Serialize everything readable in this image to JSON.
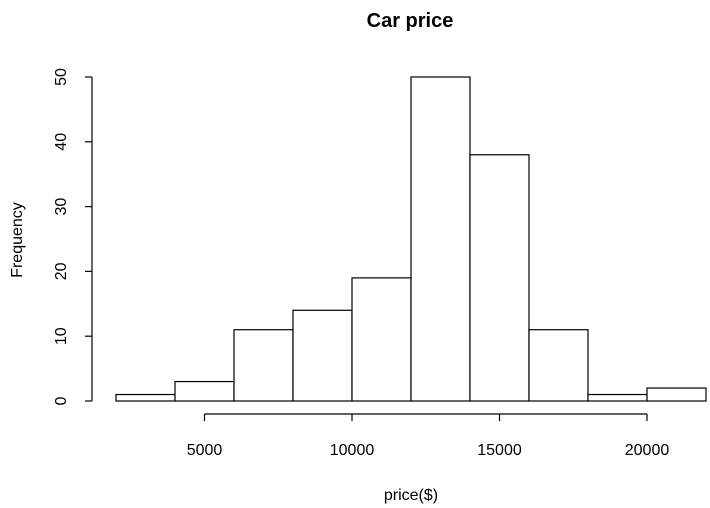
{
  "chart_data": {
    "type": "bar",
    "subtype": "histogram",
    "title": "Car price",
    "xlabel": "price($)",
    "ylabel": "Frequency",
    "bins": [
      {
        "start": 2000,
        "end": 4000,
        "count": 1
      },
      {
        "start": 4000,
        "end": 6000,
        "count": 3
      },
      {
        "start": 6000,
        "end": 8000,
        "count": 11
      },
      {
        "start": 8000,
        "end": 10000,
        "count": 14
      },
      {
        "start": 10000,
        "end": 12000,
        "count": 19
      },
      {
        "start": 12000,
        "end": 14000,
        "count": 50
      },
      {
        "start": 14000,
        "end": 16000,
        "count": 38
      },
      {
        "start": 16000,
        "end": 18000,
        "count": 11
      },
      {
        "start": 18000,
        "end": 20000,
        "count": 1
      },
      {
        "start": 20000,
        "end": 22000,
        "count": 2
      }
    ],
    "xticks": [
      5000,
      10000,
      15000,
      20000
    ],
    "xtick_labels": [
      "5000",
      "10000",
      "15000",
      "20000"
    ],
    "yticks": [
      0,
      10,
      20,
      30,
      40,
      50
    ],
    "ytick_labels": [
      "0",
      "10",
      "20",
      "30",
      "40",
      "50"
    ],
    "xlim": [
      2000,
      22000
    ],
    "ylim": [
      0,
      50
    ],
    "grid": false,
    "colors": {
      "bar_fill": "#ffffff",
      "bar_stroke": "#000000",
      "background": "#ffffff"
    }
  }
}
